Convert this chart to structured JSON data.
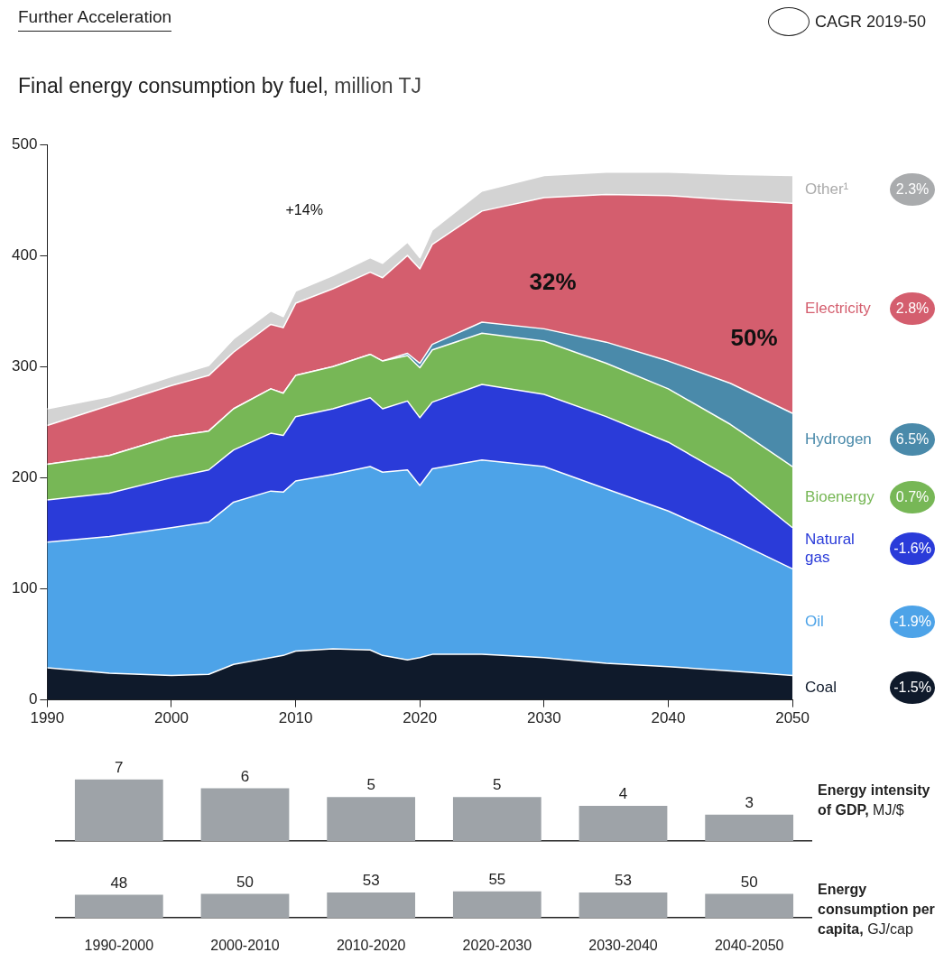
{
  "chart_data": [
    {
      "type": "area",
      "stacked": true,
      "title": "Further Acceleration",
      "subtitle": "Final energy consumption by fuel, million TJ",
      "legend_title": "CAGR 2019-50",
      "x": [
        1990,
        1995,
        2000,
        2003,
        2005,
        2008,
        2009,
        2010,
        2013,
        2016,
        2017,
        2019,
        2020,
        2021,
        2025,
        2030,
        2035,
        2040,
        2045,
        2050
      ],
      "series": [
        {
          "name": "Coal",
          "color": "#0f1a2b",
          "values": [
            29,
            24,
            22,
            23,
            32,
            38,
            40,
            44,
            46,
            45,
            40,
            36,
            38,
            41,
            41,
            38,
            33,
            30,
            26,
            22
          ]
        },
        {
          "name": "Oil",
          "color": "#4da3e8",
          "values": [
            113,
            123,
            133,
            137,
            146,
            150,
            147,
            153,
            157,
            165,
            165,
            171,
            155,
            167,
            175,
            172,
            157,
            140,
            119,
            96
          ]
        },
        {
          "name": "Natural gas",
          "color": "#2a3bd9",
          "values": [
            38,
            39,
            45,
            47,
            47,
            52,
            51,
            58,
            59,
            62,
            57,
            62,
            61,
            60,
            68,
            65,
            65,
            62,
            55,
            37
          ]
        },
        {
          "name": "Bioenergy",
          "color": "#77b756",
          "values": [
            32,
            34,
            37,
            35,
            37,
            40,
            38,
            37,
            38,
            39,
            43,
            41,
            45,
            47,
            46,
            48,
            48,
            48,
            48,
            55
          ]
        },
        {
          "name": "Hydrogen",
          "color": "#4a8aaa",
          "values": [
            0,
            0,
            0,
            0,
            0,
            0,
            0,
            0,
            0,
            0,
            0,
            2,
            4,
            5,
            10,
            11,
            19,
            25,
            37,
            48
          ]
        },
        {
          "name": "Electricity",
          "color": "#d45e6e",
          "values": [
            35,
            45,
            46,
            50,
            51,
            58,
            59,
            65,
            70,
            74,
            75,
            88,
            85,
            90,
            100,
            118,
            133,
            149,
            165,
            189
          ]
        },
        {
          "name": "Other¹",
          "color": "#d3d3d3",
          "values": [
            15,
            8,
            8,
            9,
            12,
            12,
            10,
            11,
            12,
            13,
            13,
            12,
            10,
            13,
            18,
            20,
            20,
            21,
            23,
            25
          ]
        }
      ],
      "annotations": [
        "-1.5%",
        "-1.9%",
        "-1.6%",
        "0.7%",
        "6.5%",
        "2.8%",
        "2.3%",
        "+14%",
        "32%",
        "50%"
      ],
      "legend": "right",
      "xlim": [
        1990,
        2050
      ],
      "xticks": [
        1990,
        2000,
        2010,
        2020,
        2030,
        2040,
        2050
      ],
      "ylim": [
        0,
        500
      ],
      "yticks": [
        0,
        100,
        200,
        300,
        400,
        500
      ],
      "grid": false
    },
    {
      "type": "bar",
      "title": "Energy intensity of GDP, MJ/$",
      "categories": [
        null,
        null,
        null,
        null,
        null,
        null
      ],
      "values": [
        7,
        6,
        5,
        5,
        4,
        3
      ],
      "color": "#9ea3a8",
      "data_labels": true
    },
    {
      "type": "bar",
      "title": "Energy consumption per capita, GJ/cap",
      "categories": [
        "1990-2000",
        "2000-2010",
        "2010-2020",
        "2020-2030",
        "2030-2040",
        "2040-2050"
      ],
      "values": [
        48,
        50,
        53,
        55,
        53,
        50
      ],
      "color": "#9ea3a8",
      "data_labels": true
    }
  ]
}
